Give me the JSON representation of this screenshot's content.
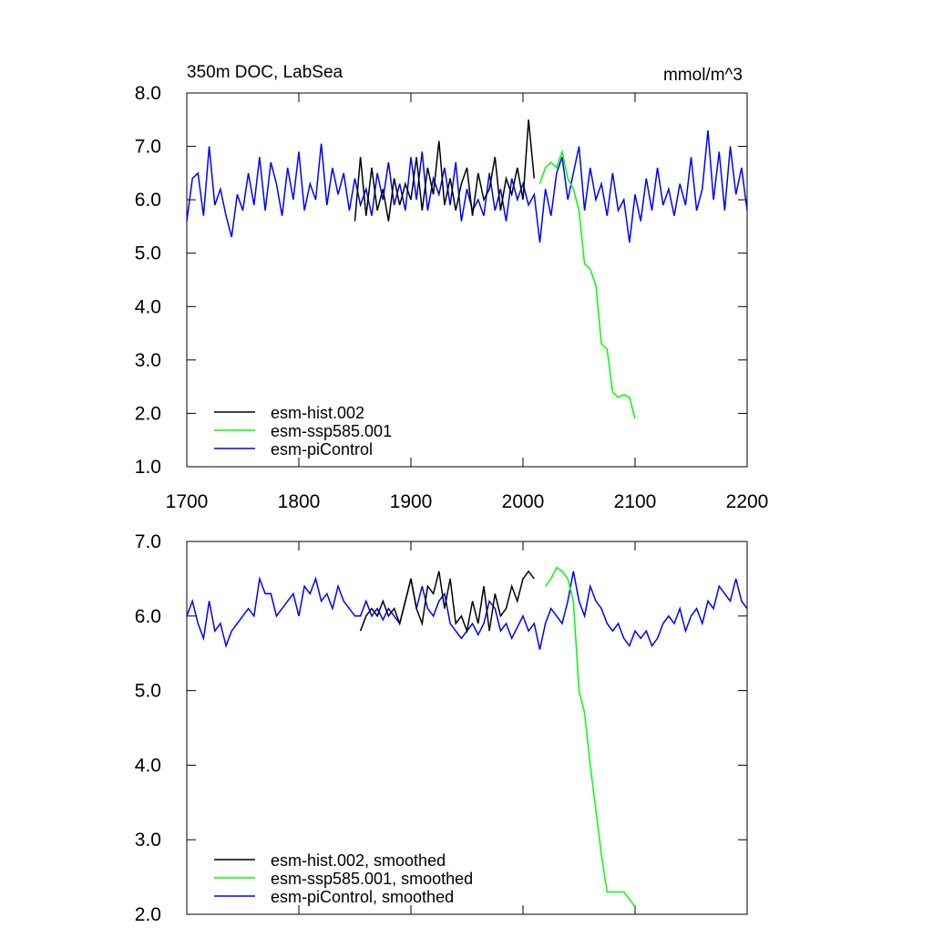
{
  "chart_data": [
    {
      "type": "line",
      "title": "350m DOC, LabSea",
      "units": "mmol/m^3",
      "xlim": [
        1700,
        2200
      ],
      "xticks": [
        1700,
        1800,
        1900,
        2000,
        2100,
        2200
      ],
      "ylim": [
        1,
        8
      ],
      "yticks": [
        {
          "value": 1,
          "label": "1.0"
        },
        {
          "value": 2,
          "label": "2.0"
        },
        {
          "value": 3,
          "label": "3.0"
        },
        {
          "value": 4,
          "label": "4.0"
        },
        {
          "value": 5,
          "label": "5.0"
        },
        {
          "value": 6,
          "label": "6.0"
        },
        {
          "value": 7,
          "label": "7.0"
        },
        {
          "value": 8,
          "label": "8.0"
        }
      ],
      "series": [
        {
          "name": "esm-hist.002",
          "color": "#000000",
          "x": [
            1850,
            1855,
            1860,
            1865,
            1870,
            1875,
            1880,
            1885,
            1890,
            1895,
            1900,
            1905,
            1910,
            1915,
            1920,
            1925,
            1930,
            1935,
            1940,
            1945,
            1950,
            1955,
            1960,
            1965,
            1970,
            1975,
            1980,
            1985,
            1990,
            1995,
            2000,
            2005,
            2010
          ],
          "values": [
            5.6,
            6.8,
            5.7,
            6.6,
            5.8,
            6.2,
            5.6,
            6.4,
            5.9,
            6.3,
            6.0,
            6.8,
            5.8,
            6.6,
            6.1,
            7.1,
            5.9,
            6.4,
            5.8,
            6.3,
            6.6,
            5.7,
            6.5,
            6.0,
            6.2,
            6.8,
            5.8,
            6.4,
            6.1,
            6.6,
            6.0,
            7.5,
            6.4
          ]
        },
        {
          "name": "esm-ssp585.001",
          "color": "#00ff00",
          "x": [
            2015,
            2020,
            2025,
            2030,
            2035,
            2040,
            2045,
            2050,
            2055,
            2060,
            2065,
            2070,
            2075,
            2080,
            2085,
            2090,
            2095,
            2100
          ],
          "values": [
            6.3,
            6.6,
            6.7,
            6.6,
            6.9,
            6.4,
            6.2,
            5.8,
            4.8,
            4.7,
            4.4,
            3.3,
            3.2,
            2.4,
            2.3,
            2.35,
            2.3,
            1.9
          ]
        },
        {
          "name": "esm-piControl",
          "color": "#0000ff",
          "x": [
            1700,
            1705,
            1710,
            1715,
            1720,
            1725,
            1730,
            1735,
            1740,
            1745,
            1750,
            1755,
            1760,
            1765,
            1770,
            1775,
            1780,
            1785,
            1790,
            1795,
            1800,
            1805,
            1810,
            1815,
            1820,
            1825,
            1830,
            1835,
            1840,
            1845,
            1850,
            1855,
            1860,
            1865,
            1870,
            1875,
            1880,
            1885,
            1890,
            1895,
            1900,
            1905,
            1910,
            1915,
            1920,
            1925,
            1930,
            1935,
            1940,
            1945,
            1950,
            1955,
            1960,
            1965,
            1970,
            1975,
            1980,
            1985,
            1990,
            1995,
            2000,
            2005,
            2010,
            2015,
            2020,
            2025,
            2030,
            2035,
            2040,
            2045,
            2050,
            2055,
            2060,
            2065,
            2070,
            2075,
            2080,
            2085,
            2090,
            2095,
            2100,
            2105,
            2110,
            2115,
            2120,
            2125,
            2130,
            2135,
            2140,
            2145,
            2150,
            2155,
            2160,
            2165,
            2170,
            2175,
            2180,
            2185,
            2190,
            2195,
            2200
          ],
          "values": [
            5.6,
            6.4,
            6.5,
            5.7,
            7.0,
            5.9,
            6.2,
            5.7,
            5.3,
            6.1,
            5.8,
            6.5,
            5.9,
            6.8,
            5.8,
            6.7,
            6.3,
            5.7,
            6.6,
            6.0,
            6.9,
            5.8,
            6.3,
            6.0,
            7.05,
            5.9,
            6.6,
            6.1,
            6.5,
            5.8,
            6.4,
            5.9,
            6.2,
            5.7,
            6.5,
            6.0,
            6.7,
            5.9,
            6.3,
            5.8,
            6.8,
            6.0,
            6.9,
            5.8,
            6.4,
            6.1,
            6.6,
            5.9,
            6.7,
            5.6,
            6.2,
            5.8,
            6.0,
            5.7,
            6.5,
            5.8,
            6.2,
            5.6,
            6.4,
            6.0,
            6.3,
            5.9,
            6.1,
            5.2,
            6.2,
            5.7,
            6.5,
            6.8,
            6.0,
            6.5,
            7.0,
            5.8,
            6.6,
            6.0,
            6.3,
            5.7,
            6.5,
            5.8,
            6.0,
            5.2,
            6.1,
            5.6,
            6.4,
            5.8,
            6.6,
            5.9,
            6.2,
            5.7,
            6.3,
            5.9,
            6.8,
            5.8,
            6.2,
            7.3,
            6.0,
            6.9,
            5.8,
            7.0,
            6.1,
            6.6,
            5.8
          ]
        }
      ]
    },
    {
      "type": "line",
      "xlim": [
        1700,
        2200
      ],
      "xticks": [
        1700,
        1800,
        1900,
        2000,
        2100,
        2200
      ],
      "ylim": [
        2,
        7
      ],
      "yticks": [
        {
          "value": 2,
          "label": "2.0"
        },
        {
          "value": 3,
          "label": "3.0"
        },
        {
          "value": 4,
          "label": "4.0"
        },
        {
          "value": 5,
          "label": "5.0"
        },
        {
          "value": 6,
          "label": "6.0"
        },
        {
          "value": 7,
          "label": "7.0"
        }
      ],
      "series": [
        {
          "name": "esm-hist.002, smoothed",
          "color": "#000000",
          "x": [
            1855,
            1860,
            1865,
            1870,
            1875,
            1880,
            1885,
            1890,
            1895,
            1900,
            1905,
            1910,
            1915,
            1920,
            1925,
            1930,
            1935,
            1940,
            1945,
            1950,
            1955,
            1960,
            1965,
            1970,
            1975,
            1980,
            1985,
            1990,
            1995,
            2000,
            2005,
            2010
          ],
          "values": [
            5.8,
            6.0,
            6.1,
            6.0,
            6.2,
            6.0,
            6.1,
            5.9,
            6.2,
            6.5,
            6.1,
            5.9,
            6.4,
            6.3,
            6.6,
            6.1,
            6.5,
            5.9,
            6.0,
            5.8,
            6.2,
            5.9,
            6.4,
            5.8,
            6.3,
            6.0,
            6.1,
            6.4,
            6.2,
            6.5,
            6.6,
            6.5
          ]
        },
        {
          "name": "esm-ssp585.001, smoothed",
          "color": "#00ff00",
          "x": [
            2020,
            2025,
            2030,
            2035,
            2040,
            2045,
            2050,
            2055,
            2060,
            2065,
            2070,
            2075,
            2080,
            2085,
            2090,
            2095,
            2100
          ],
          "values": [
            6.4,
            6.5,
            6.65,
            6.6,
            6.5,
            6.2,
            5.0,
            4.7,
            4.0,
            3.4,
            2.8,
            2.3,
            2.3,
            2.3,
            2.3,
            2.2,
            2.1
          ]
        },
        {
          "name": "esm-piControl, smoothed",
          "color": "#0000ff",
          "x": [
            1700,
            1705,
            1710,
            1715,
            1720,
            1725,
            1730,
            1735,
            1740,
            1745,
            1750,
            1755,
            1760,
            1765,
            1770,
            1775,
            1780,
            1785,
            1790,
            1795,
            1800,
            1805,
            1810,
            1815,
            1820,
            1825,
            1830,
            1835,
            1840,
            1845,
            1850,
            1855,
            1860,
            1865,
            1870,
            1875,
            1880,
            1885,
            1890,
            1895,
            1900,
            1905,
            1910,
            1915,
            1920,
            1925,
            1930,
            1935,
            1940,
            1945,
            1950,
            1955,
            1960,
            1965,
            1970,
            1975,
            1980,
            1985,
            1990,
            1995,
            2000,
            2005,
            2010,
            2015,
            2020,
            2025,
            2030,
            2035,
            2040,
            2045,
            2050,
            2055,
            2060,
            2065,
            2070,
            2075,
            2080,
            2085,
            2090,
            2095,
            2100,
            2105,
            2110,
            2115,
            2120,
            2125,
            2130,
            2135,
            2140,
            2145,
            2150,
            2155,
            2160,
            2165,
            2170,
            2175,
            2180,
            2185,
            2190,
            2195,
            2200
          ],
          "values": [
            6.0,
            6.2,
            5.9,
            5.7,
            6.2,
            5.8,
            5.9,
            5.6,
            5.8,
            5.9,
            6.0,
            6.1,
            6.0,
            6.5,
            6.3,
            6.3,
            6.0,
            6.1,
            6.2,
            6.3,
            6.0,
            6.4,
            6.3,
            6.5,
            6.2,
            6.3,
            6.1,
            6.4,
            6.2,
            6.1,
            6.0,
            6.0,
            6.2,
            6.0,
            6.1,
            5.95,
            6.1,
            6.0,
            5.9,
            6.2,
            6.5,
            6.1,
            6.4,
            6.1,
            6.0,
            6.2,
            6.3,
            5.9,
            5.8,
            5.7,
            5.8,
            5.9,
            5.75,
            5.9,
            6.2,
            6.1,
            5.8,
            5.9,
            5.7,
            5.85,
            6.0,
            5.8,
            5.9,
            5.55,
            5.9,
            6.1,
            6.0,
            5.9,
            6.2,
            6.6,
            6.2,
            6.0,
            6.4,
            6.2,
            6.1,
            5.9,
            5.8,
            5.9,
            5.7,
            5.6,
            5.8,
            5.7,
            5.8,
            5.6,
            5.7,
            5.9,
            6.0,
            5.9,
            6.1,
            5.8,
            6.0,
            6.1,
            5.9,
            6.2,
            6.1,
            6.4,
            6.3,
            6.2,
            6.5,
            6.2,
            6.1
          ]
        }
      ]
    }
  ]
}
